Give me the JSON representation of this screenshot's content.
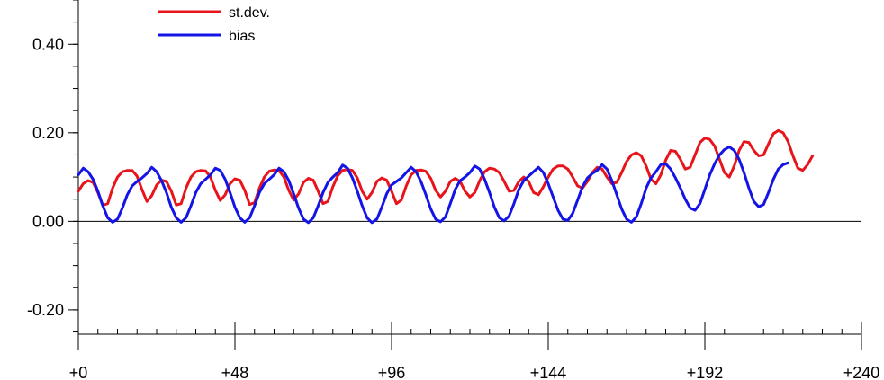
{
  "chart_data": {
    "type": "line",
    "title": "",
    "xlabel": "",
    "ylabel": "",
    "xlim": [
      0,
      240
    ],
    "ylim": [
      -0.255,
      0.5
    ],
    "x_ticks": [
      {
        "value": 0,
        "label": "+0"
      },
      {
        "value": 48,
        "label": "+48"
      },
      {
        "value": 96,
        "label": "+96"
      },
      {
        "value": 144,
        "label": "+144"
      },
      {
        "value": 192,
        "label": "+192"
      },
      {
        "value": 240,
        "label": "+240"
      }
    ],
    "x_minor_step": 6,
    "y_ticks": [
      {
        "value": 0.4,
        "label": "0.40"
      },
      {
        "value": 0.2,
        "label": "0.20"
      },
      {
        "value": 0.0,
        "label": "0.00"
      },
      {
        "value": -0.2,
        "label": "-0.20"
      }
    ],
    "y_minor_step": 0.05,
    "zero_line": true,
    "grid": false,
    "legend_position": "top-left",
    "series": [
      {
        "name": "st.dev.",
        "color": "#e8141b",
        "points": [
          [
            0,
            0.068
          ],
          [
            1.5,
            0.085
          ],
          [
            3,
            0.092
          ],
          [
            4.5,
            0.088
          ],
          [
            6,
            0.065
          ],
          [
            7.5,
            0.036
          ],
          [
            9,
            0.04
          ],
          [
            10.5,
            0.075
          ],
          [
            12,
            0.1
          ],
          [
            13.5,
            0.112
          ],
          [
            15,
            0.115
          ],
          [
            16.5,
            0.115
          ],
          [
            18,
            0.102
          ],
          [
            19.5,
            0.072
          ],
          [
            21,
            0.045
          ],
          [
            22.5,
            0.058
          ],
          [
            24,
            0.082
          ],
          [
            25.5,
            0.093
          ],
          [
            27,
            0.09
          ],
          [
            28.5,
            0.068
          ],
          [
            30,
            0.037
          ],
          [
            31.5,
            0.04
          ],
          [
            33,
            0.075
          ],
          [
            34.5,
            0.1
          ],
          [
            36,
            0.112
          ],
          [
            37.5,
            0.115
          ],
          [
            39,
            0.114
          ],
          [
            40.5,
            0.1
          ],
          [
            42,
            0.07
          ],
          [
            43.5,
            0.047
          ],
          [
            45,
            0.06
          ],
          [
            46.5,
            0.085
          ],
          [
            48,
            0.096
          ],
          [
            49.5,
            0.093
          ],
          [
            51,
            0.07
          ],
          [
            52.5,
            0.038
          ],
          [
            54,
            0.042
          ],
          [
            55.5,
            0.075
          ],
          [
            57,
            0.1
          ],
          [
            58.5,
            0.113
          ],
          [
            60,
            0.116
          ],
          [
            61.5,
            0.115
          ],
          [
            63,
            0.1
          ],
          [
            64.5,
            0.07
          ],
          [
            66,
            0.048
          ],
          [
            67.5,
            0.062
          ],
          [
            69,
            0.088
          ],
          [
            70.5,
            0.097
          ],
          [
            72,
            0.093
          ],
          [
            73.5,
            0.068
          ],
          [
            75,
            0.04
          ],
          [
            76.5,
            0.045
          ],
          [
            78,
            0.078
          ],
          [
            79.5,
            0.103
          ],
          [
            81,
            0.115
          ],
          [
            82.5,
            0.117
          ],
          [
            84,
            0.115
          ],
          [
            85.5,
            0.098
          ],
          [
            87,
            0.068
          ],
          [
            88.5,
            0.05
          ],
          [
            90,
            0.065
          ],
          [
            91.5,
            0.09
          ],
          [
            93,
            0.098
          ],
          [
            94.5,
            0.093
          ],
          [
            96,
            0.068
          ],
          [
            97.5,
            0.04
          ],
          [
            99,
            0.048
          ],
          [
            100.5,
            0.08
          ],
          [
            102,
            0.105
          ],
          [
            103.5,
            0.115
          ],
          [
            105,
            0.116
          ],
          [
            106.5,
            0.113
          ],
          [
            108,
            0.097
          ],
          [
            109.5,
            0.07
          ],
          [
            111,
            0.055
          ],
          [
            112.5,
            0.068
          ],
          [
            114,
            0.09
          ],
          [
            115.5,
            0.097
          ],
          [
            117,
            0.09
          ],
          [
            118.5,
            0.068
          ],
          [
            120,
            0.055
          ],
          [
            121.5,
            0.065
          ],
          [
            123,
            0.092
          ],
          [
            124.5,
            0.112
          ],
          [
            126,
            0.12
          ],
          [
            127.5,
            0.118
          ],
          [
            129,
            0.11
          ],
          [
            130.5,
            0.09
          ],
          [
            132,
            0.068
          ],
          [
            133.5,
            0.07
          ],
          [
            135,
            0.09
          ],
          [
            136.5,
            0.1
          ],
          [
            138,
            0.09
          ],
          [
            139.5,
            0.065
          ],
          [
            141,
            0.06
          ],
          [
            142.5,
            0.078
          ],
          [
            144,
            0.1
          ],
          [
            145.5,
            0.118
          ],
          [
            147,
            0.125
          ],
          [
            148.5,
            0.125
          ],
          [
            150,
            0.118
          ],
          [
            151.5,
            0.1
          ],
          [
            153,
            0.08
          ],
          [
            154.5,
            0.075
          ],
          [
            156,
            0.09
          ],
          [
            157.5,
            0.11
          ],
          [
            159,
            0.122
          ],
          [
            160.5,
            0.118
          ],
          [
            162,
            0.1
          ],
          [
            163.5,
            0.085
          ],
          [
            165,
            0.088
          ],
          [
            166.5,
            0.11
          ],
          [
            168,
            0.135
          ],
          [
            169.5,
            0.15
          ],
          [
            171,
            0.155
          ],
          [
            172.5,
            0.148
          ],
          [
            174,
            0.125
          ],
          [
            175.5,
            0.095
          ],
          [
            177,
            0.085
          ],
          [
            178.5,
            0.105
          ],
          [
            180,
            0.138
          ],
          [
            181.5,
            0.16
          ],
          [
            183,
            0.158
          ],
          [
            184.5,
            0.14
          ],
          [
            186,
            0.118
          ],
          [
            187.5,
            0.122
          ],
          [
            189,
            0.15
          ],
          [
            190.5,
            0.178
          ],
          [
            192,
            0.188
          ],
          [
            193.5,
            0.185
          ],
          [
            195,
            0.17
          ],
          [
            196.5,
            0.14
          ],
          [
            198,
            0.11
          ],
          [
            199.5,
            0.1
          ],
          [
            201,
            0.125
          ],
          [
            202.5,
            0.16
          ],
          [
            204,
            0.18
          ],
          [
            205.5,
            0.178
          ],
          [
            207,
            0.16
          ],
          [
            208.5,
            0.148
          ],
          [
            210,
            0.15
          ],
          [
            211.5,
            0.175
          ],
          [
            213,
            0.198
          ],
          [
            214.5,
            0.205
          ],
          [
            216,
            0.2
          ],
          [
            217.5,
            0.18
          ],
          [
            219,
            0.148
          ],
          [
            220.5,
            0.12
          ],
          [
            222,
            0.115
          ],
          [
            223.5,
            0.128
          ],
          [
            225,
            0.148
          ]
        ]
      },
      {
        "name": "bias",
        "color": "#1414e6",
        "points": [
          [
            0,
            0.105
          ],
          [
            1.5,
            0.12
          ],
          [
            3,
            0.112
          ],
          [
            4.5,
            0.095
          ],
          [
            6,
            0.068
          ],
          [
            7.5,
            0.035
          ],
          [
            9,
            0.008
          ],
          [
            10.5,
            -0.002
          ],
          [
            12,
            0.005
          ],
          [
            13.5,
            0.03
          ],
          [
            15,
            0.06
          ],
          [
            16.5,
            0.08
          ],
          [
            18,
            0.09
          ],
          [
            19.5,
            0.098
          ],
          [
            21,
            0.108
          ],
          [
            22.5,
            0.122
          ],
          [
            24,
            0.112
          ],
          [
            25.5,
            0.092
          ],
          [
            27,
            0.065
          ],
          [
            28.5,
            0.032
          ],
          [
            30,
            0.008
          ],
          [
            31.5,
            -0.002
          ],
          [
            33,
            0.008
          ],
          [
            34.5,
            0.035
          ],
          [
            36,
            0.065
          ],
          [
            37.5,
            0.085
          ],
          [
            39,
            0.095
          ],
          [
            40.5,
            0.105
          ],
          [
            42,
            0.12
          ],
          [
            43.5,
            0.115
          ],
          [
            45,
            0.095
          ],
          [
            46.5,
            0.065
          ],
          [
            48,
            0.032
          ],
          [
            49.5,
            0.008
          ],
          [
            51,
            -0.002
          ],
          [
            52.5,
            0.008
          ],
          [
            54,
            0.035
          ],
          [
            55.5,
            0.065
          ],
          [
            57,
            0.085
          ],
          [
            58.5,
            0.095
          ],
          [
            60,
            0.105
          ],
          [
            61.5,
            0.12
          ],
          [
            63,
            0.112
          ],
          [
            64.5,
            0.092
          ],
          [
            66,
            0.062
          ],
          [
            67.5,
            0.03
          ],
          [
            69,
            0.005
          ],
          [
            70.5,
            -0.003
          ],
          [
            72,
            0.008
          ],
          [
            73.5,
            0.035
          ],
          [
            75,
            0.065
          ],
          [
            76.5,
            0.088
          ],
          [
            78,
            0.1
          ],
          [
            79.5,
            0.11
          ],
          [
            81,
            0.127
          ],
          [
            82.5,
            0.12
          ],
          [
            84,
            0.098
          ],
          [
            85.5,
            0.068
          ],
          [
            87,
            0.035
          ],
          [
            88.5,
            0.008
          ],
          [
            90,
            -0.003
          ],
          [
            91.5,
            0.005
          ],
          [
            93,
            0.032
          ],
          [
            94.5,
            0.062
          ],
          [
            96,
            0.082
          ],
          [
            97.5,
            0.09
          ],
          [
            99,
            0.098
          ],
          [
            100.5,
            0.11
          ],
          [
            102,
            0.122
          ],
          [
            103.5,
            0.112
          ],
          [
            105,
            0.09
          ],
          [
            106.5,
            0.06
          ],
          [
            108,
            0.028
          ],
          [
            109.5,
            0.005
          ],
          [
            111,
            -0.001
          ],
          [
            112.5,
            0.01
          ],
          [
            114,
            0.04
          ],
          [
            115.5,
            0.072
          ],
          [
            117,
            0.092
          ],
          [
            118.5,
            0.1
          ],
          [
            120,
            0.11
          ],
          [
            121.5,
            0.125
          ],
          [
            123,
            0.118
          ],
          [
            124.5,
            0.095
          ],
          [
            126,
            0.065
          ],
          [
            127.5,
            0.032
          ],
          [
            129,
            0.008
          ],
          [
            130.5,
            0.001
          ],
          [
            132,
            0.012
          ],
          [
            133.5,
            0.04
          ],
          [
            135,
            0.072
          ],
          [
            136.5,
            0.092
          ],
          [
            138,
            0.102
          ],
          [
            139.5,
            0.112
          ],
          [
            141,
            0.122
          ],
          [
            142.5,
            0.11
          ],
          [
            144,
            0.085
          ],
          [
            145.5,
            0.055
          ],
          [
            147,
            0.025
          ],
          [
            148.5,
            0.005
          ],
          [
            150,
            0.002
          ],
          [
            151.5,
            0.018
          ],
          [
            153,
            0.048
          ],
          [
            154.5,
            0.078
          ],
          [
            156,
            0.098
          ],
          [
            157.5,
            0.108
          ],
          [
            159,
            0.115
          ],
          [
            160.5,
            0.128
          ],
          [
            162,
            0.118
          ],
          [
            163.5,
            0.092
          ],
          [
            165,
            0.06
          ],
          [
            166.5,
            0.028
          ],
          [
            168,
            0.005
          ],
          [
            169.5,
            -0.002
          ],
          [
            171,
            0.01
          ],
          [
            172.5,
            0.04
          ],
          [
            174,
            0.075
          ],
          [
            175.5,
            0.098
          ],
          [
            177,
            0.112
          ],
          [
            178.5,
            0.128
          ],
          [
            180,
            0.13
          ],
          [
            181.5,
            0.118
          ],
          [
            183,
            0.098
          ],
          [
            184.5,
            0.075
          ],
          [
            186,
            0.05
          ],
          [
            187.5,
            0.03
          ],
          [
            189,
            0.025
          ],
          [
            190.5,
            0.04
          ],
          [
            192,
            0.072
          ],
          [
            193.5,
            0.105
          ],
          [
            195,
            0.13
          ],
          [
            196.5,
            0.15
          ],
          [
            198,
            0.162
          ],
          [
            199.5,
            0.168
          ],
          [
            201,
            0.16
          ],
          [
            202.5,
            0.14
          ],
          [
            204,
            0.11
          ],
          [
            205.5,
            0.075
          ],
          [
            207,
            0.045
          ],
          [
            208.5,
            0.033
          ],
          [
            210,
            0.038
          ],
          [
            211.5,
            0.065
          ],
          [
            213,
            0.095
          ],
          [
            214.5,
            0.118
          ],
          [
            216,
            0.128
          ],
          [
            217.5,
            0.132
          ]
        ]
      }
    ]
  }
}
